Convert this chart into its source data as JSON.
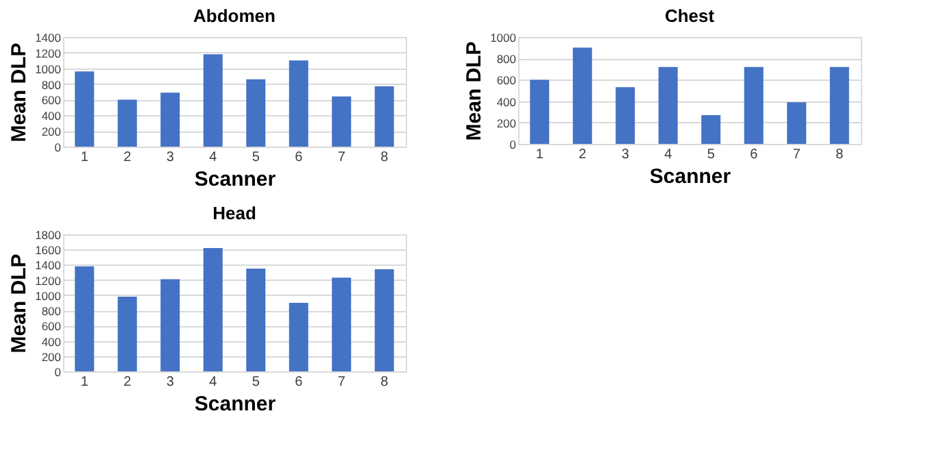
{
  "chart_data": [
    {
      "type": "bar",
      "title": "Abdomen",
      "xlabel": "Scanner",
      "ylabel": "Mean DLP",
      "categories": [
        "1",
        "2",
        "3",
        "4",
        "5",
        "6",
        "7",
        "8"
      ],
      "values": [
        960,
        600,
        690,
        1180,
        860,
        1100,
        640,
        770
      ],
      "color": "#4472c4",
      "ylim": [
        0,
        1400
      ],
      "yticks": [
        0,
        200,
        400,
        600,
        800,
        1000,
        1200,
        1400
      ],
      "grid": "y"
    },
    {
      "type": "bar",
      "title": "Chest",
      "xlabel": "Scanner",
      "ylabel": "Mean DLP",
      "categories": [
        "1",
        "2",
        "3",
        "4",
        "5",
        "6",
        "7",
        "8"
      ],
      "values": [
        600,
        900,
        530,
        720,
        270,
        720,
        390,
        720
      ],
      "color": "#4472c4",
      "ylim": [
        0,
        1000
      ],
      "yticks": [
        0,
        200,
        400,
        600,
        800,
        1000
      ],
      "grid": "y"
    },
    {
      "type": "bar",
      "title": "Head",
      "xlabel": "Scanner",
      "ylabel": "Mean DLP",
      "categories": [
        "1",
        "2",
        "3",
        "4",
        "5",
        "6",
        "7",
        "8"
      ],
      "values": [
        1380,
        980,
        1210,
        1620,
        1350,
        900,
        1230,
        1340
      ],
      "color": "#4472c4",
      "ylim": [
        0,
        1800
      ],
      "yticks": [
        0,
        200,
        400,
        600,
        800,
        1000,
        1200,
        1400,
        1600,
        1800
      ],
      "grid": "y"
    }
  ]
}
